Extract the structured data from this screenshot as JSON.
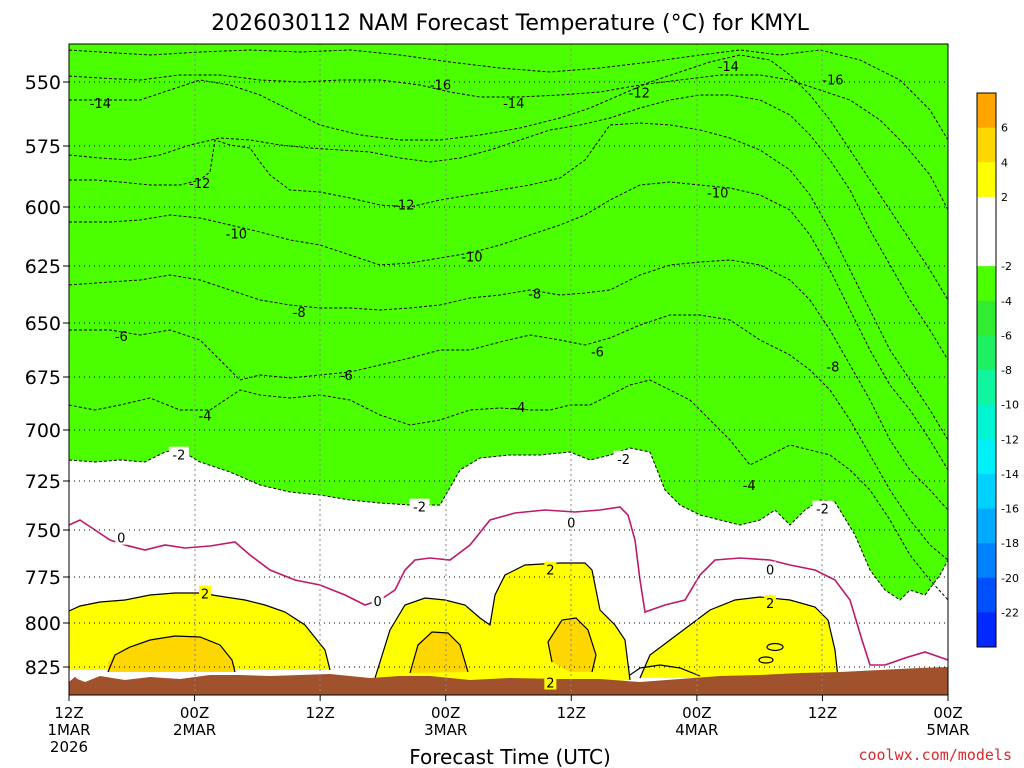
{
  "chart_data": {
    "type": "heatmap",
    "title": "2026030112 NAM Forecast Temperature (°C) for KMYL",
    "xlabel": "Forecast Time (UTC)",
    "credit": "coolwx.com/models",
    "x_ticks": [
      {
        "lines": [
          "12Z",
          "1MAR",
          "2026"
        ]
      },
      {
        "lines": [
          "00Z",
          "2MAR"
        ]
      },
      {
        "lines": [
          "12Z"
        ]
      },
      {
        "lines": [
          "00Z",
          "3MAR"
        ]
      },
      {
        "lines": [
          "12Z"
        ]
      },
      {
        "lines": [
          "00Z",
          "4MAR"
        ]
      },
      {
        "lines": [
          "12Z"
        ]
      },
      {
        "lines": [
          "00Z",
          "5MAR"
        ]
      }
    ],
    "xlim_hours": [
      0,
      84
    ],
    "y_ticks": [
      "550",
      "575",
      "600",
      "625",
      "650",
      "675",
      "700",
      "725",
      "750",
      "775",
      "800",
      "825"
    ],
    "ylim_hpa": [
      537,
      838
    ],
    "color_bins": [
      {
        "label": "6",
        "color": "#FFA500"
      },
      {
        "label": "4",
        "color": "#FFD700"
      },
      {
        "label": "2",
        "color": "#FFFF00"
      },
      {
        "label": "",
        "color": "#FFFFFF"
      },
      {
        "label": "-2",
        "color": "#FFFFFF"
      },
      {
        "label": "-4",
        "color": "#4CFF00"
      },
      {
        "label": "-6",
        "color": "#32EC32"
      },
      {
        "label": "-8",
        "color": "#1EF064"
      },
      {
        "label": "-10",
        "color": "#0FF5A0"
      },
      {
        "label": "-12",
        "color": "#00F5D2"
      },
      {
        "label": "-14",
        "color": "#00F0F8"
      },
      {
        "label": "-16",
        "color": "#00D2FF"
      },
      {
        "label": "-18",
        "color": "#00AAFF"
      },
      {
        "label": "-20",
        "color": "#0082FF"
      },
      {
        "label": "-22",
        "color": "#0050FF"
      },
      {
        "label": "",
        "color": "#0028FF"
      }
    ],
    "contour_labels": [
      {
        "text": "-14",
        "hour": 3.0,
        "p": 558
      },
      {
        "text": "-16",
        "hour": 35.5,
        "p": 551
      },
      {
        "text": "-14",
        "hour": 63.0,
        "p": 544
      },
      {
        "text": "-16",
        "hour": 73.0,
        "p": 549
      },
      {
        "text": "-14",
        "hour": 42.5,
        "p": 558
      },
      {
        "text": "-12",
        "hour": 54.5,
        "p": 554
      },
      {
        "text": "-12",
        "hour": 12.5,
        "p": 590
      },
      {
        "text": "-12",
        "hour": 32.0,
        "p": 599
      },
      {
        "text": "-10",
        "hour": 62.0,
        "p": 594
      },
      {
        "text": "-10",
        "hour": 16.0,
        "p": 611
      },
      {
        "text": "-10",
        "hour": 38.5,
        "p": 621
      },
      {
        "text": "-8",
        "hour": 22.0,
        "p": 645
      },
      {
        "text": "-8",
        "hour": 44.5,
        "p": 637
      },
      {
        "text": "-6",
        "hour": 5.0,
        "p": 656
      },
      {
        "text": "-6",
        "hour": 26.5,
        "p": 674
      },
      {
        "text": "-6",
        "hour": 50.5,
        "p": 663
      },
      {
        "text": "-8",
        "hour": 73.0,
        "p": 670
      },
      {
        "text": "-4",
        "hour": 13.0,
        "p": 693
      },
      {
        "text": "-4",
        "hour": 43.0,
        "p": 689
      },
      {
        "text": "-2",
        "hour": 10.5,
        "p": 712
      },
      {
        "text": "-2",
        "hour": 33.5,
        "p": 738
      },
      {
        "text": "-2",
        "hour": 53.0,
        "p": 714
      },
      {
        "text": "-4",
        "hour": 65.0,
        "p": 727
      },
      {
        "text": "-2",
        "hour": 72.0,
        "p": 739
      },
      {
        "text": "0",
        "hour": 5.0,
        "p": 754
      },
      {
        "text": "0",
        "hour": 29.5,
        "p": 788
      },
      {
        "text": "0",
        "hour": 48.0,
        "p": 746
      },
      {
        "text": "0",
        "hour": 67.0,
        "p": 771
      },
      {
        "text": "2",
        "hour": 13.0,
        "p": 784
      },
      {
        "text": "2",
        "hour": 46.0,
        "p": 771
      },
      {
        "text": "2",
        "hour": 67.0,
        "p": 789
      },
      {
        "text": "2",
        "hour": 46.0,
        "p": 834
      }
    ]
  }
}
